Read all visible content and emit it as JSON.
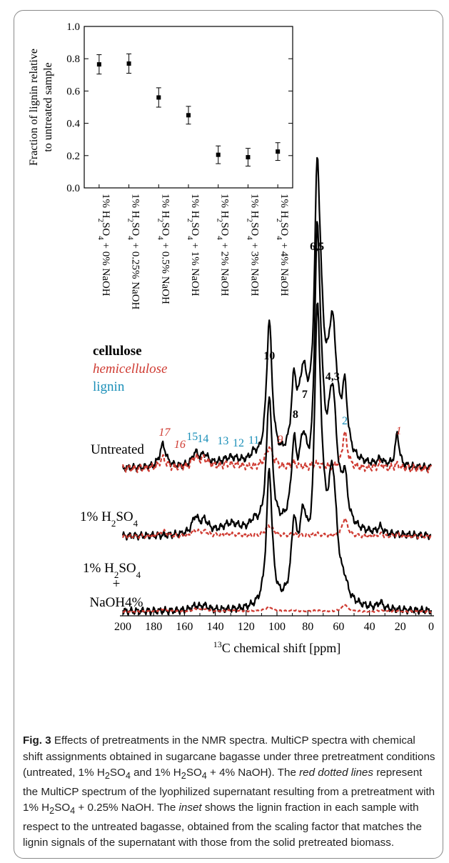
{
  "chart_data": [
    {
      "type": "scatter",
      "ylabel_lines": [
        "Fraction of lignin relative",
        "to untreated sample"
      ],
      "ylim": [
        0.0,
        1.0
      ],
      "yticks": [
        "0.0",
        "0.2",
        "0.4",
        "0.6",
        "0.8",
        "1.0"
      ],
      "categories": [
        [
          "1% H",
          "2",
          "SO",
          "4",
          " + 0% NaOH"
        ],
        [
          "1% H",
          "2",
          "SO",
          "4",
          " + 0.25% NaOH"
        ],
        [
          "1% H",
          "2",
          "SO",
          "4",
          " + 0.5% NaOH"
        ],
        [
          "1% H",
          "2",
          "SO",
          "4",
          " + 1% NaOH"
        ],
        [
          "1% H",
          "2",
          "SO",
          "4",
          " + 2% NaOH"
        ],
        [
          "1% H",
          "2",
          "SO",
          "4",
          " + 3% NaOH"
        ],
        [
          "1% H",
          "2",
          "SO",
          "4",
          " + 4% NaOH"
        ]
      ],
      "values": [
        0.765,
        0.77,
        0.56,
        0.45,
        0.205,
        0.19,
        0.225
      ],
      "errors": [
        0.06,
        0.06,
        0.06,
        0.055,
        0.055,
        0.055,
        0.055
      ]
    },
    {
      "type": "line",
      "xlabel_sup": "13",
      "xlabel_rest": "C chemical shift [ppm]",
      "xlim": [
        200,
        0
      ],
      "xticks": [
        "200",
        "180",
        "160",
        "140",
        "120",
        "100",
        "80",
        "60",
        "40",
        "20",
        "0"
      ],
      "legend": [
        {
          "text": "cellulose",
          "color": "#000000",
          "style": "bold"
        },
        {
          "text": "hemicellulose",
          "color": "#cf3b32",
          "style": "italic"
        },
        {
          "text": "lignin",
          "color": "#1a8fb8",
          "style": "normal"
        }
      ],
      "sample_labels": {
        "untreated": "Untreated",
        "acid_a": "1% H",
        "acid_sub": "2",
        "acid_b": "SO",
        "acid_sub2": "4",
        "naoh_a": "1% H",
        "naoh_sub": "2",
        "naoh_b": "SO",
        "naoh_sub2": "4",
        "plus": "+",
        "naoh_line": "NaOH4%"
      },
      "peak_labels": [
        {
          "text": "6,5",
          "ppm": 74,
          "color": "#000000",
          "style": "bold"
        },
        {
          "text": "10",
          "ppm": 105,
          "color": "#000000",
          "style": "bold"
        },
        {
          "text": "4,3",
          "ppm": 64,
          "color": "#000000",
          "style": "bold"
        },
        {
          "text": "7",
          "ppm": 82,
          "color": "#000000",
          "style": "bold"
        },
        {
          "text": "8",
          "ppm": 88,
          "color": "#000000",
          "style": "bold"
        },
        {
          "text": "2",
          "ppm": 56,
          "color": "#1a8fb8",
          "style": "normal"
        },
        {
          "text": "1",
          "ppm": 21,
          "color": "#cf3b32",
          "style": "italic"
        },
        {
          "text": "9",
          "ppm": 98,
          "color": "#cf3b32",
          "style": "italic"
        },
        {
          "text": "11",
          "ppm": 115,
          "color": "#1a8fb8",
          "style": "normal"
        },
        {
          "text": "12",
          "ppm": 125,
          "color": "#1a8fb8",
          "style": "normal"
        },
        {
          "text": "13",
          "ppm": 135,
          "color": "#1a8fb8",
          "style": "normal"
        },
        {
          "text": "14",
          "ppm": 148,
          "color": "#1a8fb8",
          "style": "normal"
        },
        {
          "text": "15",
          "ppm": 155,
          "color": "#1a8fb8",
          "style": "normal"
        },
        {
          "text": "16",
          "ppm": 163,
          "color": "#cf3b32",
          "style": "italic"
        },
        {
          "text": "17",
          "ppm": 173,
          "color": "#cf3b32",
          "style": "italic"
        }
      ],
      "series": [
        {
          "name": "Untreated",
          "peaks": [
            [
              174,
              0.11,
              2.5
            ],
            [
              153,
              0.06,
              2.5
            ],
            [
              147,
              0.05,
              3
            ],
            [
              130,
              0.04,
              8
            ],
            [
              115,
              0.035,
              3
            ],
            [
              105,
              0.68,
              2.2
            ],
            [
              89,
              0.32,
              2
            ],
            [
              83,
              0.36,
              3.5
            ],
            [
              74,
              1.0,
              2
            ],
            [
              72,
              0.5,
              3.5
            ],
            [
              64,
              0.6,
              3.5
            ],
            [
              56,
              0.3,
              2
            ],
            [
              33,
              0.03,
              2
            ],
            [
              22,
              0.16,
              1.5
            ]
          ]
        },
        {
          "name": "1% H2SO4",
          "peaks": [
            [
              153,
              0.08,
              2.5
            ],
            [
              147,
              0.06,
              3
            ],
            [
              130,
              0.05,
              8
            ],
            [
              115,
              0.04,
              3
            ],
            [
              105,
              0.65,
              2.2
            ],
            [
              89,
              0.33,
              2
            ],
            [
              83,
              0.36,
              3.5
            ],
            [
              74,
              1.0,
              2
            ],
            [
              72,
              0.5,
              3.5
            ],
            [
              64,
              0.6,
              3.5
            ],
            [
              56,
              0.2,
              2
            ],
            [
              33,
              0.03,
              2
            ]
          ]
        },
        {
          "name": "1% H2SO4 + NaOH4%",
          "peaks": [
            [
              153,
              0.02,
              3
            ],
            [
              147,
              0.02,
              3
            ],
            [
              105,
              0.66,
              2.2
            ],
            [
              89,
              0.32,
              2
            ],
            [
              83,
              0.36,
              3.5
            ],
            [
              74,
              1.0,
              2
            ],
            [
              72,
              0.5,
              3.5
            ],
            [
              64,
              0.58,
              3.5
            ],
            [
              56,
              0.05,
              2
            ],
            [
              33,
              0.03,
              2
            ]
          ]
        },
        {
          "name": "supernatant",
          "peaks": [
            [
              174,
              0.05,
              2.5
            ],
            [
              153,
              0.05,
              2.5
            ],
            [
              147,
              0.04,
              3
            ],
            [
              130,
              0.02,
              8
            ],
            [
              105,
              0.1,
              3
            ],
            [
              89,
              0.02,
              3
            ],
            [
              74,
              0.02,
              4
            ],
            [
              56,
              0.17,
              2
            ],
            [
              33,
              0.02,
              2
            ],
            [
              22,
              0.02,
              2
            ]
          ]
        }
      ]
    }
  ],
  "caption": {
    "label": "Fig. 3",
    "t1": "  Effects of pretreatments in the NMR spectra. MultiCP spectra with chemical shift assignments obtained in sugarcane bagasse under three pretreatment conditions (untreated, 1% H",
    "s1": "2",
    "t2": "SO",
    "s2": "4",
    "t3": " and 1% H",
    "s3": "2",
    "t4": "SO",
    "s4": "4",
    "t5": " + 4% NaOH). The ",
    "i1": "red dotted lines",
    "t6": " represent the MultiCP spectrum of the lyophilized supernatant resulting from a pretreatment with 1% H",
    "s5": "2",
    "t7": "SO",
    "s6": "4",
    "t8": " + 0.25% NaOH. The ",
    "i2": "inset",
    "t9": " shows the lignin fraction in each sample with respect to the untreated bagasse, obtained from the scaling factor that matches the lignin signals of the supernatant with those from the solid pretreated biomass."
  }
}
